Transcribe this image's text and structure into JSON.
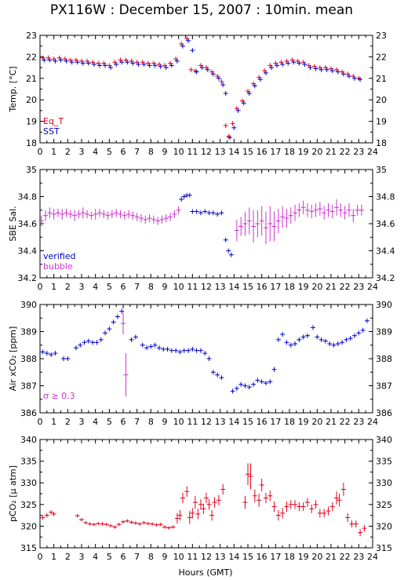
{
  "title": "PX116W : December 15, 2007 : 10min. mean",
  "colors": {
    "red": "#e0001a",
    "blue": "#0000c8",
    "magenta": "#cc33cc"
  },
  "chart_data": [
    {
      "type": "scatter",
      "ylabel": "Temp. [°C]",
      "xlabel": "",
      "xlim": [
        0,
        24
      ],
      "ylim": [
        18,
        23
      ],
      "yticks": [
        18,
        19,
        20,
        21,
        22,
        23
      ],
      "xticks": [
        "0",
        "1",
        "2",
        "3",
        "4",
        "5",
        "6",
        "7",
        "8",
        "9",
        "10",
        "11",
        "12",
        "13",
        "14",
        "15",
        "16",
        "17",
        "18",
        "19",
        "20",
        "21",
        "22",
        "23",
        "24"
      ],
      "legend": [
        {
          "text": "Eq_T",
          "color": "#e0001a"
        },
        {
          "text": "SST",
          "color": "#0000c8"
        }
      ],
      "series": [
        {
          "name": "Eq_T",
          "color": "#e0001a",
          "x": [
            0.2,
            0.6,
            1.0,
            1.4,
            1.8,
            2.2,
            2.6,
            3.0,
            3.4,
            3.8,
            4.2,
            4.6,
            5.0,
            5.4,
            5.8,
            6.2,
            6.6,
            7.0,
            7.4,
            7.8,
            8.2,
            8.6,
            9.0,
            9.4,
            9.8,
            10.2,
            10.6,
            10.9,
            11.2,
            11.6,
            12.0,
            12.4,
            12.8,
            13.1,
            13.4,
            13.6,
            13.9,
            14.2,
            14.6,
            15.0,
            15.4,
            15.8,
            16.2,
            16.6,
            17.0,
            17.4,
            17.8,
            18.2,
            18.6,
            19.0,
            19.4,
            19.8,
            20.2,
            20.6,
            21.0,
            21.4,
            21.8,
            22.2,
            22.6,
            23.0
          ],
          "y": [
            21.95,
            21.95,
            21.9,
            21.95,
            21.9,
            21.85,
            21.85,
            21.8,
            21.8,
            21.75,
            21.7,
            21.7,
            21.6,
            21.75,
            21.85,
            21.85,
            21.8,
            21.75,
            21.75,
            21.7,
            21.7,
            21.65,
            21.6,
            21.7,
            21.9,
            22.6,
            22.85,
            21.4,
            21.35,
            21.6,
            21.5,
            21.3,
            21.1,
            20.85,
            18.8,
            18.3,
            18.9,
            19.6,
            19.95,
            20.4,
            20.75,
            21.05,
            21.35,
            21.6,
            21.7,
            21.75,
            21.8,
            21.85,
            21.8,
            21.75,
            21.6,
            21.55,
            21.5,
            21.5,
            21.45,
            21.4,
            21.3,
            21.2,
            21.1,
            21.0
          ]
        },
        {
          "name": "SST",
          "color": "#0000c8",
          "x": [
            0.3,
            0.7,
            1.1,
            1.5,
            1.9,
            2.3,
            2.7,
            3.1,
            3.5,
            3.9,
            4.3,
            4.7,
            5.1,
            5.5,
            5.9,
            6.3,
            6.7,
            7.1,
            7.5,
            7.9,
            8.3,
            8.7,
            9.1,
            9.5,
            9.9,
            10.3,
            10.7,
            11.0,
            11.3,
            11.7,
            12.1,
            12.5,
            12.9,
            13.2,
            13.4,
            13.7,
            14.0,
            14.3,
            14.7,
            15.1,
            15.5,
            15.9,
            16.3,
            16.7,
            17.1,
            17.5,
            17.9,
            18.3,
            18.7,
            19.1,
            19.5,
            19.9,
            20.3,
            20.7,
            21.1,
            21.5,
            21.9,
            22.3,
            22.7,
            23.1
          ],
          "y": [
            21.85,
            21.85,
            21.8,
            21.85,
            21.8,
            21.75,
            21.75,
            21.7,
            21.7,
            21.65,
            21.6,
            21.6,
            21.5,
            21.65,
            21.75,
            21.75,
            21.7,
            21.65,
            21.65,
            21.6,
            21.6,
            21.55,
            21.5,
            21.6,
            21.8,
            22.5,
            22.75,
            22.3,
            21.3,
            21.5,
            21.4,
            21.2,
            21.0,
            20.7,
            20.3,
            18.25,
            18.7,
            19.5,
            19.85,
            20.3,
            20.65,
            20.95,
            21.25,
            21.5,
            21.6,
            21.65,
            21.7,
            21.75,
            21.7,
            21.65,
            21.5,
            21.45,
            21.4,
            21.4,
            21.35,
            21.3,
            21.2,
            21.1,
            21.0,
            20.95
          ]
        }
      ]
    },
    {
      "type": "scatter",
      "ylabel": "SBE Sal.",
      "xlabel": "",
      "xlim": [
        0,
        24
      ],
      "ylim": [
        34.2,
        35.0
      ],
      "yticks": [
        34.2,
        34.4,
        34.6,
        34.8,
        35
      ],
      "xticks": [
        "0",
        "1",
        "2",
        "3",
        "4",
        "5",
        "6",
        "7",
        "8",
        "9",
        "10",
        "11",
        "12",
        "13",
        "14",
        "15",
        "16",
        "17",
        "18",
        "19",
        "20",
        "21",
        "22",
        "23",
        "24"
      ],
      "legend": [
        {
          "text": "verified",
          "color": "#0000c8"
        },
        {
          "text": "bubble",
          "color": "#cc33cc"
        }
      ],
      "series": [
        {
          "name": "verified",
          "color": "#0000c8",
          "x": [
            10.2,
            10.4,
            10.6,
            10.8,
            11.0,
            11.3,
            11.6,
            11.9,
            12.2,
            12.5,
            12.8,
            13.1,
            13.4,
            13.6,
            13.8
          ],
          "y": [
            34.78,
            34.8,
            34.81,
            34.81,
            34.69,
            34.69,
            34.68,
            34.69,
            34.68,
            34.68,
            34.67,
            34.68,
            34.48,
            34.4,
            34.37
          ]
        },
        {
          "name": "bubble",
          "color": "#cc33cc",
          "x": [
            0.1,
            0.4,
            0.7,
            1.0,
            1.3,
            1.6,
            1.9,
            2.2,
            2.5,
            2.8,
            3.1,
            3.4,
            3.7,
            4.0,
            4.3,
            4.6,
            4.9,
            5.2,
            5.5,
            5.8,
            6.1,
            6.4,
            6.7,
            7.0,
            7.3,
            7.6,
            7.9,
            8.2,
            8.5,
            8.8,
            9.1,
            9.4,
            9.7,
            10.0,
            14.2,
            14.5,
            14.8,
            15.1,
            15.4,
            15.7,
            16.0,
            16.3,
            16.6,
            16.9,
            17.2,
            17.5,
            17.8,
            18.1,
            18.4,
            18.7,
            19.0,
            19.3,
            19.6,
            19.9,
            20.2,
            20.5,
            20.8,
            21.1,
            21.4,
            21.7,
            22.0,
            22.3,
            22.6,
            22.9,
            23.2
          ],
          "y": [
            34.62,
            34.66,
            34.68,
            34.67,
            34.68,
            34.67,
            34.68,
            34.67,
            34.66,
            34.67,
            34.68,
            34.67,
            34.66,
            34.67,
            34.68,
            34.67,
            34.66,
            34.67,
            34.68,
            34.67,
            34.66,
            34.67,
            34.66,
            34.65,
            34.64,
            34.63,
            34.64,
            34.63,
            34.62,
            34.63,
            34.64,
            34.65,
            34.67,
            34.7,
            34.55,
            34.58,
            34.6,
            34.62,
            34.58,
            34.6,
            34.62,
            34.57,
            34.6,
            34.58,
            34.62,
            34.65,
            34.64,
            34.66,
            34.68,
            34.7,
            34.72,
            34.7,
            34.69,
            34.7,
            34.71,
            34.68,
            34.7,
            34.69,
            34.72,
            34.7,
            34.68,
            34.7,
            34.66,
            34.7,
            34.7
          ],
          "err": [
            0.04,
            0.04,
            0.04,
            0.04,
            0.03,
            0.04,
            0.03,
            0.03,
            0.04,
            0.03,
            0.04,
            0.03,
            0.03,
            0.04,
            0.03,
            0.03,
            0.03,
            0.03,
            0.03,
            0.03,
            0.03,
            0.03,
            0.03,
            0.03,
            0.03,
            0.03,
            0.03,
            0.03,
            0.03,
            0.03,
            0.03,
            0.03,
            0.03,
            0.03,
            0.08,
            0.07,
            0.09,
            0.1,
            0.12,
            0.1,
            0.11,
            0.12,
            0.13,
            0.11,
            0.09,
            0.08,
            0.07,
            0.06,
            0.06,
            0.05,
            0.05,
            0.05,
            0.05,
            0.05,
            0.05,
            0.05,
            0.05,
            0.05,
            0.06,
            0.05,
            0.05,
            0.05,
            0.05,
            0.04,
            0.04
          ]
        }
      ]
    },
    {
      "type": "scatter",
      "ylabel": "Air xCO₂ [ppm]",
      "xlabel": "",
      "xlim": [
        0,
        24
      ],
      "ylim": [
        386,
        390
      ],
      "yticks": [
        386,
        387,
        388,
        389,
        390
      ],
      "xticks": [
        "0",
        "1",
        "2",
        "3",
        "4",
        "5",
        "6",
        "7",
        "8",
        "9",
        "10",
        "11",
        "12",
        "13",
        "14",
        "15",
        "16",
        "17",
        "18",
        "19",
        "20",
        "21",
        "22",
        "23",
        "24"
      ],
      "annotation": "σ ≥ 0.3",
      "series": [
        {
          "name": "Air",
          "color": "#0000c8",
          "x": [
            0.2,
            0.5,
            0.8,
            1.1,
            1.7,
            2.0,
            2.6,
            2.9,
            3.2,
            3.5,
            3.8,
            4.1,
            4.4,
            4.7,
            5.0,
            5.3,
            5.6,
            5.9,
            6.6,
            6.9,
            7.4,
            7.7,
            8.0,
            8.3,
            8.6,
            8.9,
            9.2,
            9.5,
            9.8,
            10.1,
            10.4,
            10.7,
            11.0,
            11.3,
            11.6,
            11.9,
            12.2,
            12.5,
            12.8,
            13.1,
            13.9,
            14.2,
            14.5,
            14.8,
            15.1,
            15.4,
            15.7,
            16.0,
            16.3,
            16.6,
            16.9,
            17.2,
            17.5,
            17.8,
            18.1,
            18.4,
            18.7,
            19.0,
            19.3,
            19.7,
            20.0,
            20.3,
            20.6,
            20.9,
            21.2,
            21.5,
            21.8,
            22.1,
            22.4,
            22.7,
            23.0,
            23.3,
            23.6
          ],
          "y": [
            388.25,
            388.2,
            388.15,
            388.2,
            388.0,
            388.0,
            388.4,
            388.5,
            388.6,
            388.65,
            388.6,
            388.6,
            388.7,
            388.95,
            389.1,
            389.35,
            389.55,
            389.75,
            388.7,
            388.8,
            388.5,
            388.4,
            388.45,
            388.5,
            388.4,
            388.35,
            388.35,
            388.3,
            388.3,
            388.25,
            388.3,
            388.3,
            388.35,
            388.3,
            388.3,
            388.2,
            388.0,
            387.5,
            387.4,
            387.3,
            386.8,
            386.9,
            387.05,
            387.0,
            386.95,
            387.05,
            387.2,
            387.15,
            387.1,
            387.15,
            387.6,
            388.7,
            388.9,
            388.6,
            388.5,
            388.55,
            388.7,
            388.8,
            388.85,
            389.15,
            388.8,
            388.7,
            388.65,
            388.55,
            388.5,
            388.55,
            388.6,
            388.7,
            388.75,
            388.85,
            388.95,
            389.05,
            389.4
          ]
        },
        {
          "name": "σ ≥ 0.3",
          "color": "#cc33cc",
          "x": [
            6.0,
            6.2
          ],
          "y": [
            389.3,
            387.4
          ],
          "err": [
            0.4,
            0.8
          ]
        }
      ]
    },
    {
      "type": "scatter",
      "ylabel": "pCO₂ [μ atm]",
      "xlabel": "Hours (GMT)",
      "xlim": [
        0,
        24
      ],
      "ylim": [
        315,
        340
      ],
      "yticks": [
        315,
        320,
        325,
        330,
        335,
        340
      ],
      "xticks": [
        "0",
        "1",
        "2",
        "3",
        "4",
        "5",
        "6",
        "7",
        "8",
        "9",
        "10",
        "11",
        "12",
        "13",
        "14",
        "15",
        "16",
        "17",
        "18",
        "19",
        "20",
        "21",
        "22",
        "23",
        "24"
      ],
      "series": [
        {
          "name": "pCO2",
          "color": "#e0001a",
          "x": [
            0.2,
            0.5,
            0.8,
            1.0,
            2.7,
            3.0,
            3.3,
            3.6,
            3.9,
            4.2,
            4.5,
            4.8,
            5.1,
            5.4,
            5.7,
            6.0,
            6.3,
            6.6,
            6.9,
            7.2,
            7.5,
            7.8,
            8.1,
            8.4,
            8.7,
            9.0,
            9.3,
            9.6,
            9.9,
            10.1,
            10.3,
            10.6,
            10.8,
            11.0,
            11.2,
            11.4,
            11.6,
            11.8,
            12.0,
            12.2,
            12.4,
            12.6,
            12.9,
            13.2,
            14.8,
            15.0,
            15.2,
            15.5,
            15.8,
            16.0,
            16.3,
            16.6,
            16.9,
            17.2,
            17.5,
            17.8,
            18.1,
            18.4,
            18.7,
            19.0,
            19.3,
            19.6,
            19.9,
            20.2,
            20.5,
            20.8,
            21.1,
            21.4,
            21.6,
            21.9,
            22.2,
            22.5,
            22.8,
            23.1,
            23.4
          ],
          "y": [
            322.0,
            322.5,
            323.2,
            322.8,
            322.4,
            321.5,
            320.8,
            320.5,
            320.4,
            320.6,
            320.5,
            320.4,
            320.1,
            319.8,
            320.4,
            321.0,
            321.2,
            320.9,
            320.7,
            320.5,
            320.8,
            320.6,
            320.5,
            320.3,
            320.4,
            319.8,
            319.6,
            319.8,
            321.8,
            322.5,
            326.5,
            328.0,
            322.0,
            323.0,
            325.5,
            322.8,
            325.0,
            324.0,
            326.5,
            325.0,
            322.5,
            325.5,
            326.0,
            328.5,
            325.5,
            332.0,
            331.5,
            327.0,
            326.0,
            329.5,
            326.5,
            327.0,
            324.5,
            322.5,
            323.0,
            324.5,
            325.0,
            325.0,
            324.5,
            324.5,
            325.5,
            324.0,
            325.0,
            323.0,
            323.0,
            323.5,
            324.5,
            326.5,
            326.0,
            328.5,
            322.0,
            320.5,
            320.5,
            318.5,
            319.5
          ],
          "err": [
            0.5,
            0.5,
            0.5,
            0.5,
            0.4,
            0.4,
            0.4,
            0.4,
            0.4,
            0.4,
            0.4,
            0.4,
            0.4,
            0.4,
            0.4,
            0.4,
            0.4,
            0.4,
            0.4,
            0.4,
            0.4,
            0.4,
            0.4,
            0.4,
            0.4,
            0.4,
            0.4,
            0.4,
            1.2,
            1.2,
            1.2,
            1.2,
            1.5,
            1.2,
            1.5,
            1.2,
            1.2,
            1.2,
            1.2,
            1.2,
            1.2,
            1.2,
            1.2,
            1.2,
            1.5,
            2.5,
            3.0,
            1.5,
            1.5,
            1.5,
            1.2,
            1.2,
            1.2,
            1.2,
            1.2,
            1.2,
            1.0,
            1.0,
            1.0,
            1.0,
            1.0,
            1.0,
            1.0,
            1.0,
            1.0,
            1.0,
            1.0,
            1.5,
            1.5,
            1.5,
            1.0,
            0.8,
            0.8,
            0.8,
            0.8
          ]
        }
      ]
    }
  ]
}
